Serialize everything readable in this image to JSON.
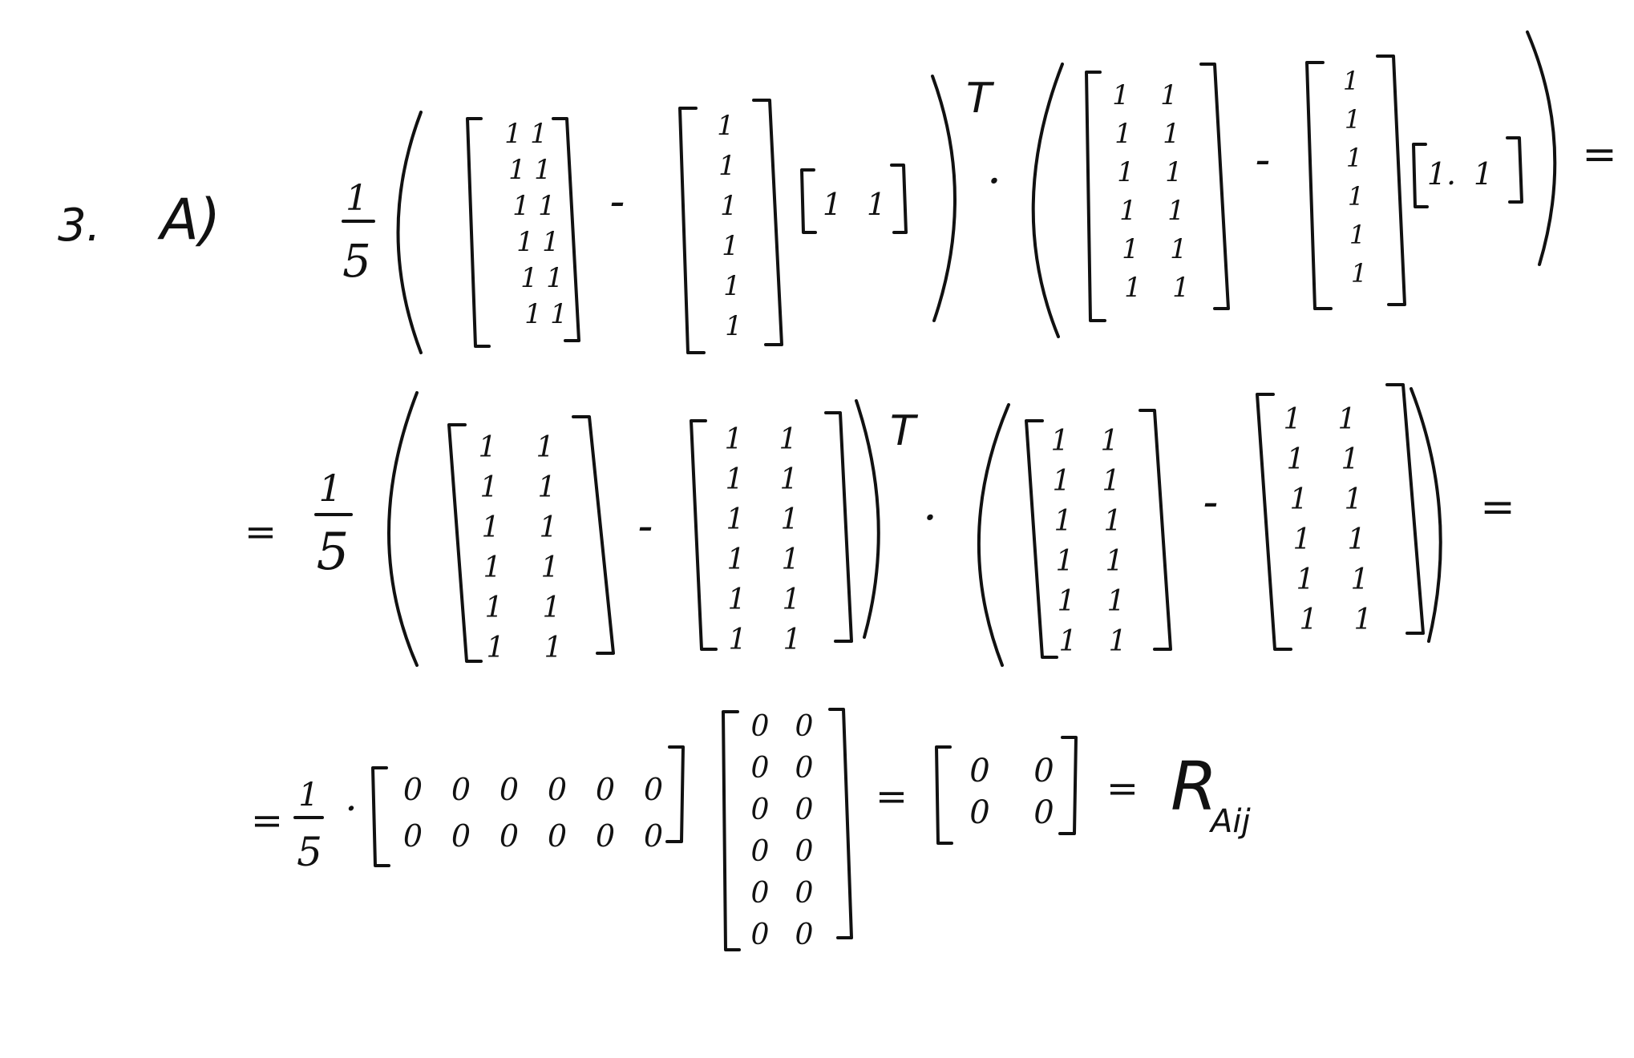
{
  "problem": {
    "number": "3.",
    "part": "A)"
  },
  "fraction": {
    "numerator": "1",
    "denominator": "5"
  },
  "symbols": {
    "minus": "-",
    "transpose": "T",
    "dot": "·",
    "equals": "="
  },
  "line1": {
    "m1": [
      [
        "1",
        "1"
      ],
      [
        "1",
        "1"
      ],
      [
        "1",
        "1"
      ],
      [
        "1",
        "1"
      ],
      [
        "1",
        "1"
      ],
      [
        "1",
        "1"
      ]
    ],
    "c1": [
      "1",
      "1",
      "1",
      "1",
      "1",
      "1"
    ],
    "r1": [
      "1",
      "1"
    ],
    "m2": [
      [
        "1",
        "1"
      ],
      [
        "1",
        "1"
      ],
      [
        "1",
        "1"
      ],
      [
        "1",
        "1"
      ],
      [
        "1",
        "1"
      ],
      [
        "1",
        "1"
      ]
    ],
    "c2": [
      "1",
      "1",
      "1",
      "1",
      "1",
      "1"
    ],
    "r2": [
      "1.",
      "1"
    ]
  },
  "line2": {
    "m1": [
      [
        "1",
        "1"
      ],
      [
        "1",
        "1"
      ],
      [
        "1",
        "1"
      ],
      [
        "1",
        "1"
      ],
      [
        "1",
        "1"
      ],
      [
        "1",
        "1"
      ]
    ],
    "m2": [
      [
        "1",
        "1"
      ],
      [
        "1",
        "1"
      ],
      [
        "1",
        "1"
      ],
      [
        "1",
        "1"
      ],
      [
        "1",
        "1"
      ],
      [
        "1",
        "1"
      ]
    ],
    "m3": [
      [
        "1",
        "1"
      ],
      [
        "1",
        "1"
      ],
      [
        "1",
        "1"
      ],
      [
        "1",
        "1"
      ],
      [
        "1",
        "1"
      ],
      [
        "1",
        "1"
      ]
    ],
    "m4": [
      [
        "1",
        "1"
      ],
      [
        "1",
        "1"
      ],
      [
        "1",
        "1"
      ],
      [
        "1",
        "1"
      ],
      [
        "1",
        "1"
      ],
      [
        "1",
        "1"
      ]
    ]
  },
  "line3": {
    "wide": [
      [
        "0",
        "0",
        "0",
        "0",
        "0",
        "0"
      ],
      [
        "0",
        "0",
        "0",
        "0",
        "0",
        "0"
      ]
    ],
    "tall": [
      [
        "0",
        "0"
      ],
      [
        "0",
        "0"
      ],
      [
        "0",
        "0"
      ],
      [
        "0",
        "0"
      ],
      [
        "0",
        "0"
      ],
      [
        "0",
        "0"
      ]
    ],
    "result": [
      [
        "0",
        "0"
      ],
      [
        "0",
        "0"
      ]
    ],
    "result_symbol": "R",
    "result_subscript": "Aij"
  }
}
